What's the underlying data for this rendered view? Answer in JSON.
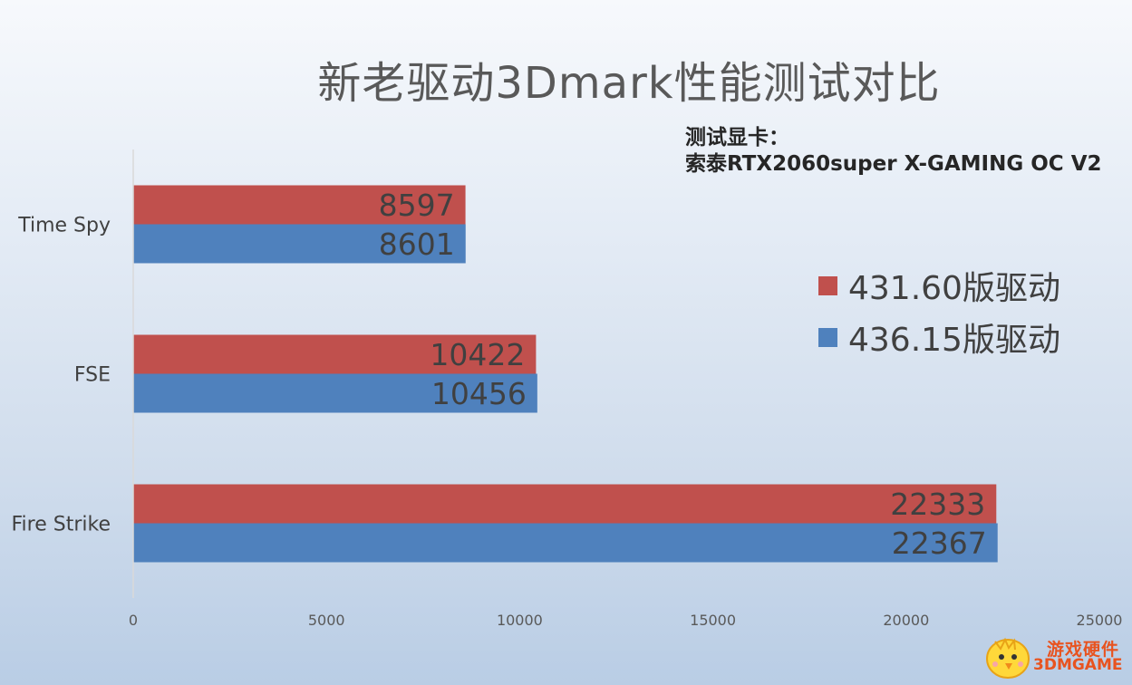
{
  "title": "新老驱动3Dmark性能测试对比",
  "note": {
    "line1": "测试显卡：",
    "line2": "索泰RTX2060super X-GAMING OC V2"
  },
  "watermark": {
    "cn": "游戏硬件",
    "en": "3DMGAME"
  },
  "colors": {
    "old": "#c0504d",
    "new": "#4f81bd"
  },
  "chart_data": {
    "type": "bar",
    "orientation": "horizontal",
    "categories": [
      "Time Spy",
      "FSE",
      "Fire Strike"
    ],
    "series": [
      {
        "name": "431.60版驱动",
        "values": [
          8597,
          10422,
          22333
        ]
      },
      {
        "name": "436.15版驱动",
        "values": [
          8601,
          10456,
          22367
        ]
      }
    ],
    "xlim": [
      0,
      25000
    ],
    "ticks": [
      0,
      5000,
      10000,
      15000,
      20000,
      25000
    ],
    "grid": false,
    "legend_position": "right"
  }
}
